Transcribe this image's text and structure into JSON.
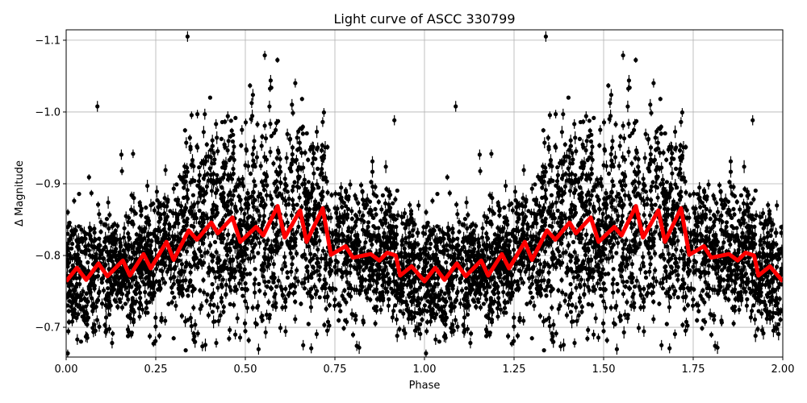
{
  "chart_data": {
    "type": "scatter",
    "title": "Light curve of ASCC 330799",
    "xlabel": "Phase",
    "ylabel": "Δ Magnitude",
    "xlim": [
      0,
      2
    ],
    "ylim": [
      -0.6585,
      -1.1145
    ],
    "y_inverted": true,
    "grid": true,
    "x_ticks": [
      0,
      0.25,
      0.5,
      0.75,
      1.0,
      1.25,
      1.5,
      1.75,
      2.0
    ],
    "x_tick_labels": [
      "0.00",
      "0.25",
      "0.50",
      "0.75",
      "1.00",
      "1.25",
      "1.50",
      "1.75",
      "2.00"
    ],
    "y_ticks": [
      -1.1,
      -1.0,
      -0.9,
      -0.8,
      -0.7
    ],
    "y_tick_labels": [
      "−1.1",
      "−1.0",
      "−0.9",
      "−0.8",
      "−0.7"
    ],
    "series": [
      {
        "kind": "errorbar-scatter",
        "color": "#000000",
        "description_visible": "dense black points with vertical error bars, repeated over two phase cycles"
      },
      {
        "kind": "line",
        "color": "#ff0000",
        "x": [
          0,
          0.03,
          0.056,
          0.09,
          0.115,
          0.158,
          0.178,
          0.216,
          0.236,
          0.28,
          0.3,
          0.342,
          0.365,
          0.405,
          0.423,
          0.464,
          0.486,
          0.53,
          0.55,
          0.59,
          0.61,
          0.653,
          0.671,
          0.716,
          0.739,
          0.78,
          0.8,
          0.85,
          0.874,
          0.896,
          0.92,
          0.932,
          0.964,
          1.0
        ],
        "y": [
          -0.764,
          -0.783,
          -0.766,
          -0.789,
          -0.771,
          -0.793,
          -0.772,
          -0.802,
          -0.782,
          -0.819,
          -0.794,
          -0.835,
          -0.822,
          -0.846,
          -0.831,
          -0.853,
          -0.819,
          -0.84,
          -0.828,
          -0.869,
          -0.825,
          -0.863,
          -0.819,
          -0.866,
          -0.801,
          -0.813,
          -0.797,
          -0.802,
          -0.793,
          -0.804,
          -0.8,
          -0.772,
          -0.785,
          -0.764
        ],
        "repeats_each_phase_cycle": true
      }
    ]
  }
}
